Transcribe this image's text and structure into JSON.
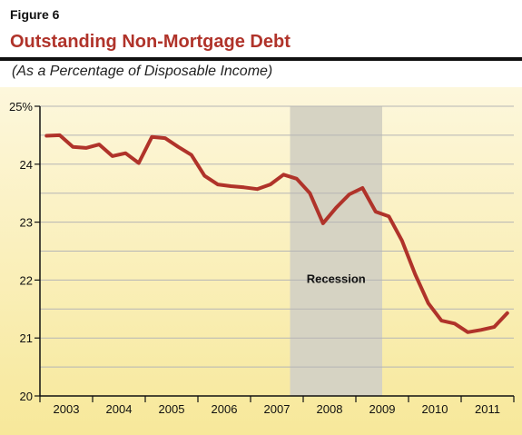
{
  "figure": {
    "label": "Figure 6",
    "title": "Outstanding Non-Mortgage Debt",
    "subtitle": "(As a Percentage of Disposable Income)"
  },
  "colors": {
    "title": "#b0332a",
    "line": "#b0332a",
    "recession": "#d6d3c3",
    "background_top": "#fdf7dc",
    "background_bottom": "#f7e89a",
    "grid": "#b5b5b5"
  },
  "chart_data": {
    "type": "line",
    "title": "Outstanding Non-Mortgage Debt",
    "ylabel": "",
    "xlabel": "",
    "ylim": [
      20,
      25
    ],
    "y_ticks": [
      20,
      21,
      22,
      23,
      24,
      25
    ],
    "y_tick_labels": [
      "20",
      "21",
      "22",
      "23",
      "24",
      "25%"
    ],
    "x_tick_labels": [
      "2003",
      "2004",
      "2005",
      "2006",
      "2007",
      "2008",
      "2009",
      "2010",
      "2011"
    ],
    "x_unit": "quarter",
    "xlim": [
      "2003-Q1",
      "2011-Q4"
    ],
    "grid": true,
    "shaded_region": {
      "label": "Recession",
      "start": "2007-Q4",
      "end": "2009-Q2"
    },
    "series": [
      {
        "x": [
          "2003-Q1",
          "2003-Q2",
          "2003-Q3",
          "2003-Q4",
          "2004-Q1",
          "2004-Q2",
          "2004-Q3",
          "2004-Q4",
          "2005-Q1",
          "2005-Q2",
          "2005-Q3",
          "2005-Q4",
          "2006-Q1",
          "2006-Q2",
          "2006-Q3",
          "2006-Q4",
          "2007-Q1",
          "2007-Q2",
          "2007-Q3",
          "2007-Q4",
          "2008-Q1",
          "2008-Q2",
          "2008-Q3",
          "2008-Q4",
          "2009-Q1",
          "2009-Q2",
          "2009-Q3",
          "2009-Q4",
          "2010-Q1",
          "2010-Q2",
          "2010-Q3",
          "2010-Q4",
          "2011-Q1",
          "2011-Q2",
          "2011-Q3",
          "2011-Q4"
        ],
        "values": [
          24.49,
          24.5,
          24.3,
          24.28,
          24.34,
          24.14,
          24.19,
          24.02,
          24.47,
          24.45,
          24.3,
          24.16,
          23.8,
          23.65,
          23.62,
          23.6,
          23.57,
          23.65,
          23.82,
          23.75,
          23.5,
          22.98,
          23.25,
          23.48,
          23.59,
          23.18,
          23.1,
          22.68,
          22.1,
          21.6,
          21.3,
          21.25,
          21.1,
          21.14,
          21.19,
          21.43
        ]
      }
    ]
  }
}
